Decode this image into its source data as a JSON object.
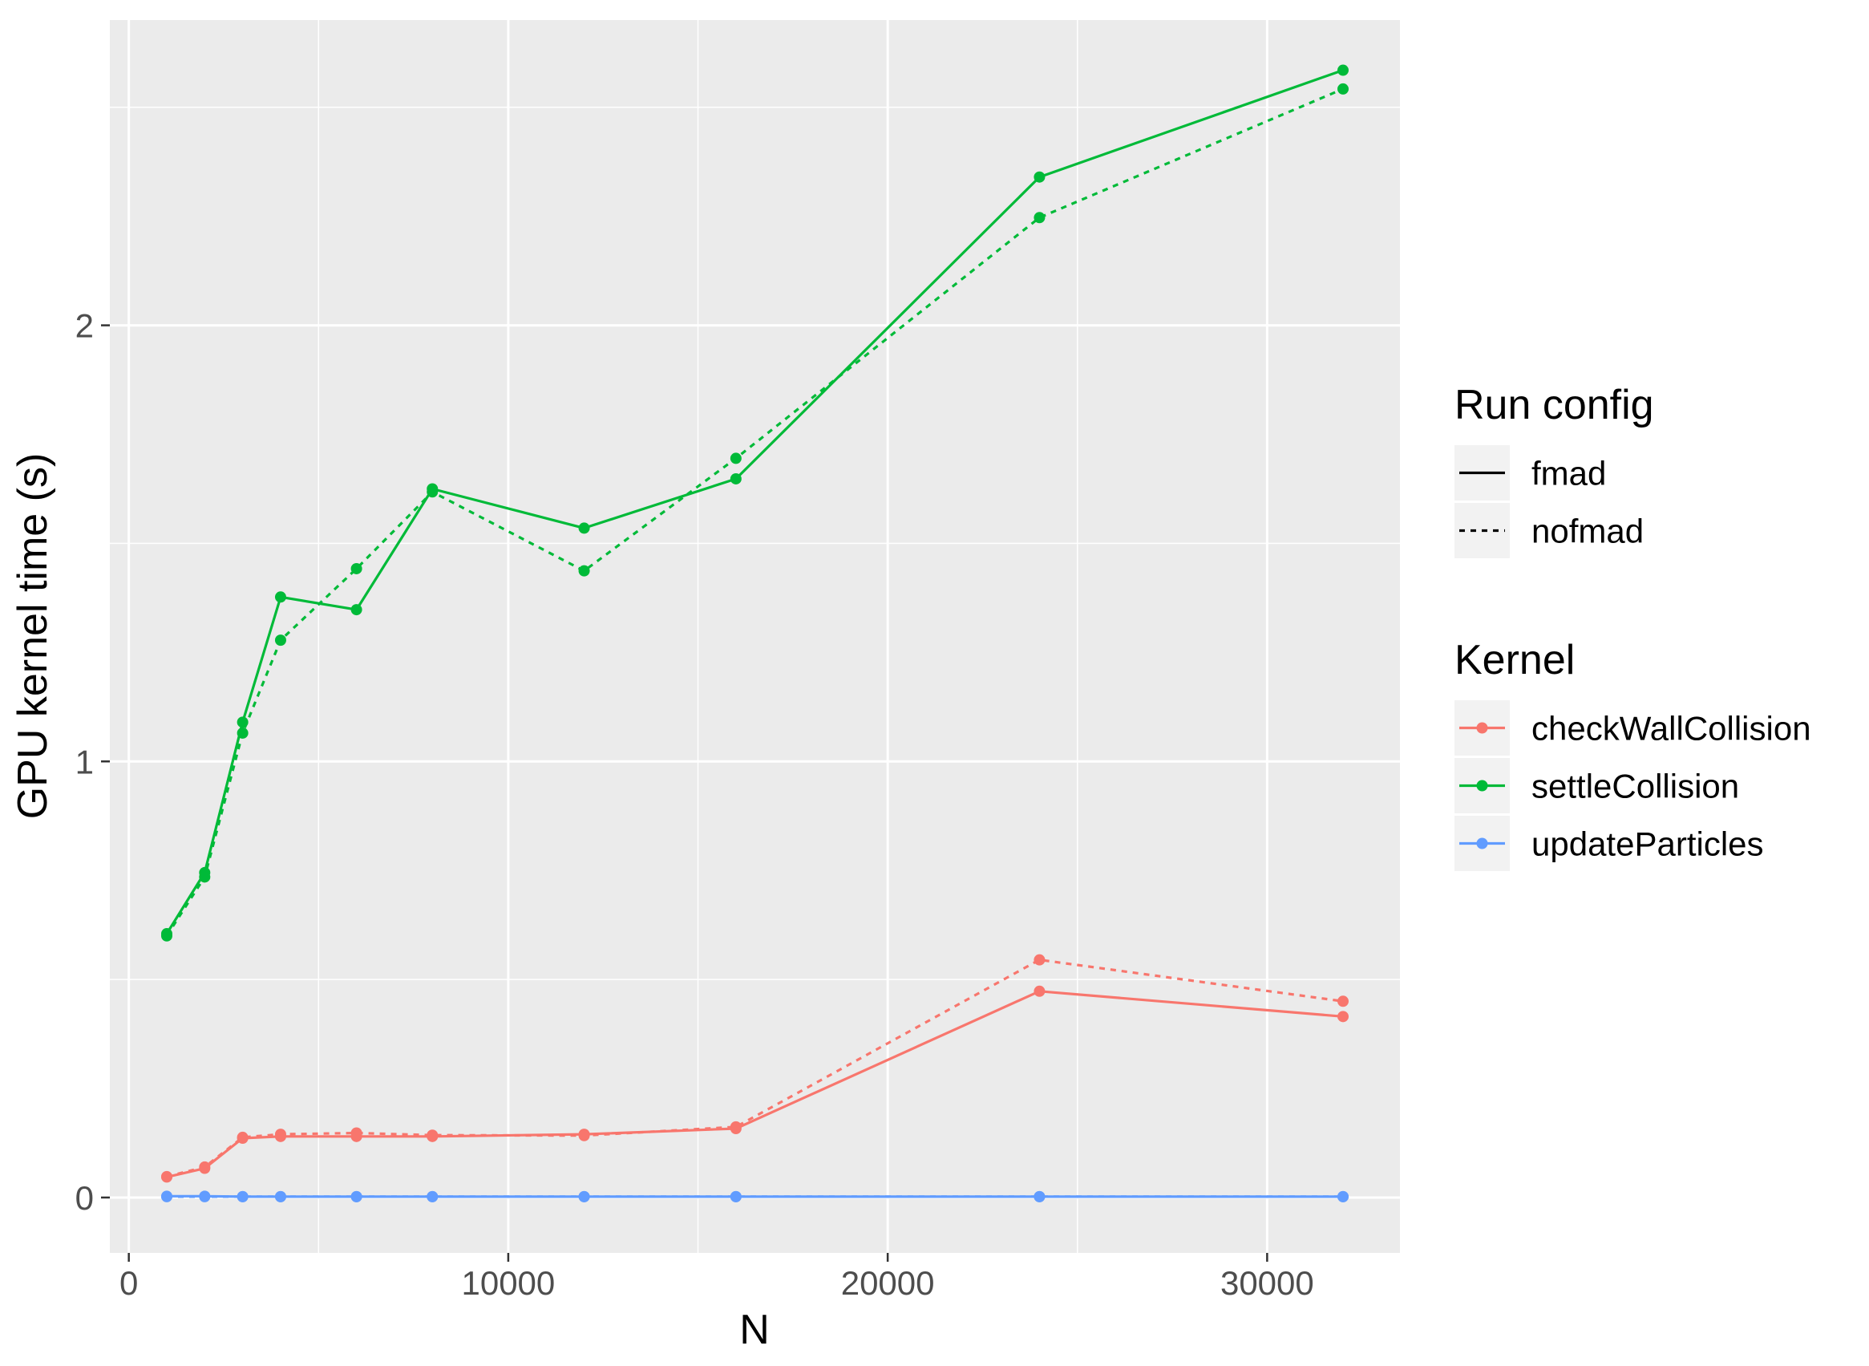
{
  "chart_data": {
    "type": "line",
    "title": "",
    "xlabel": "N",
    "ylabel": "GPU kernel time (s)",
    "xlim": [
      -500,
      33500
    ],
    "ylim": [
      -0.127,
      2.7
    ],
    "x_ticks": [
      0,
      10000,
      20000,
      30000
    ],
    "x_tick_labels": [
      "0",
      "10000",
      "20000",
      "30000"
    ],
    "y_ticks": [
      0,
      1,
      2
    ],
    "y_tick_labels": [
      "0",
      "1",
      "2"
    ],
    "grid": true,
    "x": [
      1000,
      2000,
      3000,
      4000,
      6000,
      8000,
      12000,
      16000,
      24000,
      32000
    ],
    "series": [
      {
        "kernel": "checkWallCollision",
        "config": "fmad",
        "color": "#F8766D",
        "dash": "solid",
        "values": [
          0.047,
          0.067,
          0.136,
          0.14,
          0.14,
          0.14,
          0.145,
          0.158,
          0.473,
          0.415
        ]
      },
      {
        "kernel": "checkWallCollision",
        "config": "nofmad",
        "color": "#F8766D",
        "dash": "dashed",
        "values": [
          0.048,
          0.07,
          0.138,
          0.145,
          0.148,
          0.143,
          0.142,
          0.162,
          0.545,
          0.45
        ]
      },
      {
        "kernel": "settleCollision",
        "config": "fmad",
        "color": "#00BA38",
        "dash": "solid",
        "values": [
          0.605,
          0.745,
          1.09,
          1.377,
          1.348,
          1.625,
          1.535,
          1.648,
          2.34,
          2.585
        ]
      },
      {
        "kernel": "settleCollision",
        "config": "nofmad",
        "color": "#00BA38",
        "dash": "dashed",
        "values": [
          0.6,
          0.735,
          1.065,
          1.278,
          1.442,
          1.618,
          1.437,
          1.695,
          2.247,
          2.542
        ]
      },
      {
        "kernel": "updateParticles",
        "config": "fmad",
        "color": "#619CFF",
        "dash": "solid",
        "values": [
          0.003,
          0.003,
          0.002,
          0.002,
          0.002,
          0.002,
          0.002,
          0.002,
          0.002,
          0.002
        ]
      },
      {
        "kernel": "updateParticles",
        "config": "nofmad",
        "color": "#619CFF",
        "dash": "dashed",
        "values": [
          0.002,
          0.002,
          0.002,
          0.002,
          0.002,
          0.002,
          0.002,
          0.002,
          0.002,
          0.002
        ]
      }
    ],
    "legend": {
      "placement": "right",
      "groups": [
        {
          "title": "Run config",
          "items": [
            {
              "label": "fmad",
              "dash": "solid",
              "color": "#000000",
              "point": false
            },
            {
              "label": "nofmad",
              "dash": "dashed",
              "color": "#000000",
              "point": false
            }
          ]
        },
        {
          "title": "Kernel",
          "items": [
            {
              "label": "checkWallCollision",
              "dash": "solid",
              "color": "#F8766D",
              "point": true
            },
            {
              "label": "settleCollision",
              "dash": "solid",
              "color": "#00BA38",
              "point": true
            },
            {
              "label": "updateParticles",
              "dash": "solid",
              "color": "#619CFF",
              "point": true
            }
          ]
        }
      ]
    },
    "colors": {
      "panel_background": "#EBEBEB",
      "grid": "#FFFFFF"
    }
  }
}
